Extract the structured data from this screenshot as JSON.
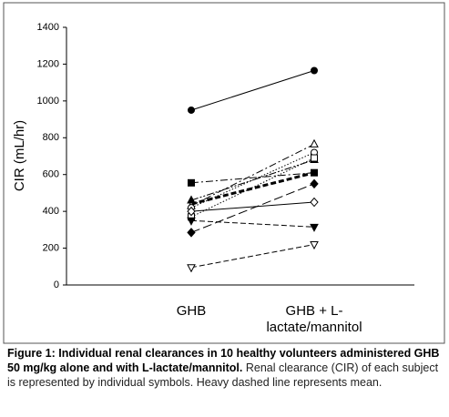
{
  "chart_data": {
    "type": "line",
    "y_label": "CIR (mL/hr)",
    "categories": [
      "GHB",
      "GHB + L-lactate/mannitol"
    ],
    "ylim": [
      0,
      1400
    ],
    "yticks": [
      0,
      200,
      400,
      600,
      800,
      1000,
      1200,
      1400
    ],
    "series": [
      {
        "color": "#000000",
        "marker": "circle",
        "filled": true,
        "dash": "solid",
        "width": 1,
        "values": [
          950,
          1165
        ]
      },
      {
        "color": "#000000",
        "marker": "square",
        "filled": true,
        "dash": "dashdot",
        "width": 1,
        "values": [
          555,
          610
        ]
      },
      {
        "color": "#000000",
        "marker": "triangle-up",
        "filled": true,
        "dash": "dashdotdot",
        "width": 1,
        "values": [
          460,
          680
        ]
      },
      {
        "color": "#000000",
        "marker": "triangle-up",
        "filled": false,
        "dash": "dashdot",
        "width": 1,
        "values": [
          430,
          765
        ]
      },
      {
        "color": "#000000",
        "marker": "circle",
        "filled": false,
        "dash": "dotted",
        "width": 1,
        "values": [
          420,
          720
        ]
      },
      {
        "color": "#000000",
        "marker": "square",
        "filled": false,
        "dash": "dotted",
        "width": 1,
        "values": [
          370,
          690
        ]
      },
      {
        "color": "#000000",
        "marker": "diamond",
        "filled": false,
        "dash": "solid",
        "width": 1,
        "values": [
          400,
          450
        ]
      },
      {
        "color": "#000000",
        "marker": "triangle-down",
        "filled": true,
        "dash": "dashed",
        "width": 1,
        "values": [
          350,
          315
        ]
      },
      {
        "color": "#000000",
        "marker": "diamond",
        "filled": true,
        "dash": "longdash",
        "width": 1,
        "values": [
          285,
          550
        ]
      },
      {
        "color": "#000000",
        "marker": "triangle-down",
        "filled": false,
        "dash": "dashed",
        "width": 1,
        "values": [
          95,
          220
        ]
      },
      {
        "color": "#000000",
        "marker": "none",
        "filled": true,
        "dash": "dashed",
        "width": 3,
        "values": [
          440,
          610
        ]
      }
    ],
    "caption": {
      "bold": "Figure 1: Individual renal clearances in 10 healthy volunteers administered GHB 50 mg/kg alone and with L-lactate/mannitol.",
      "text": "Renal clearance (CIR) of each subject is represented by individual symbols. Heavy dashed line represents mean."
    }
  }
}
